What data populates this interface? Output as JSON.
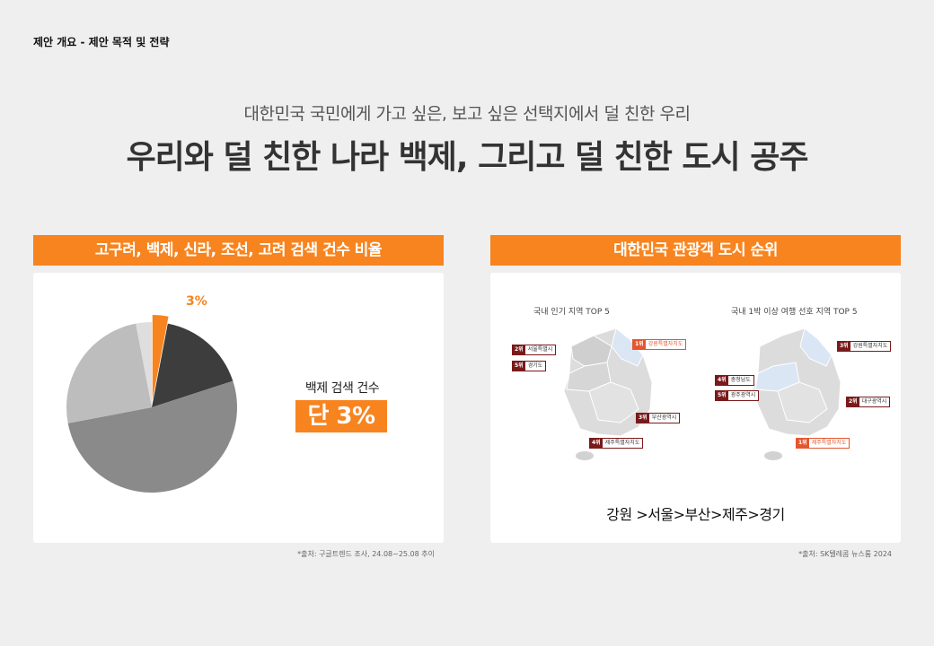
{
  "header": {
    "label": "제안 개요 - 제안 목적 및 전략"
  },
  "subtitle": "대한민국 국민에게 가고 싶은, 보고 싶은 선택지에서 덜 친한 우리",
  "title": "우리와 덜 친한 나라 백제, 그리고 덜 친한 도시 공주",
  "left_panel": {
    "header": "고구려, 백제, 신라, 조선, 고려 검색 건수 비율",
    "pie_label": "3%",
    "stat_label": "백제 검색 건수",
    "stat_value": "단 3%",
    "source": "*출처: 구글트렌드 조사, 24.08~25.08 추이"
  },
  "right_panel": {
    "header": "대한민국 관광객 도시 순위",
    "map1": {
      "title": "국내 인기 지역 TOP 5",
      "tags": [
        {
          "rank": "1위",
          "name": "강원특별자치도"
        },
        {
          "rank": "2위",
          "name": "서울특별시"
        },
        {
          "rank": "3위",
          "name": "부산광역시"
        },
        {
          "rank": "4위",
          "name": "제주특별자치도"
        },
        {
          "rank": "5위",
          "name": "경기도"
        }
      ]
    },
    "map2": {
      "title": "국내 1박 이상 여행 선호 지역 TOP 5",
      "tags": [
        {
          "rank": "1위",
          "name": "제주특별자치도"
        },
        {
          "rank": "2위",
          "name": "대구광역시"
        },
        {
          "rank": "3위",
          "name": "강원특별자치도"
        },
        {
          "rank": "4위",
          "name": "충청남도"
        },
        {
          "rank": "5위",
          "name": "광주광역시"
        }
      ]
    },
    "ranking": "강원 >서울>부산>제주>경기",
    "source": "*출처: SK텔레콤 뉴스룸 2024"
  },
  "chart_data": {
    "type": "pie",
    "title": "",
    "slices": [
      {
        "value": 3,
        "color": "#f7841f",
        "label": "3%"
      },
      {
        "value": 17,
        "color": "#3d3d3d"
      },
      {
        "value": 52,
        "color": "#8a8a8a"
      },
      {
        "value": 25,
        "color": "#bdbdbd"
      },
      {
        "value": 3,
        "color": "#dedede"
      }
    ]
  }
}
